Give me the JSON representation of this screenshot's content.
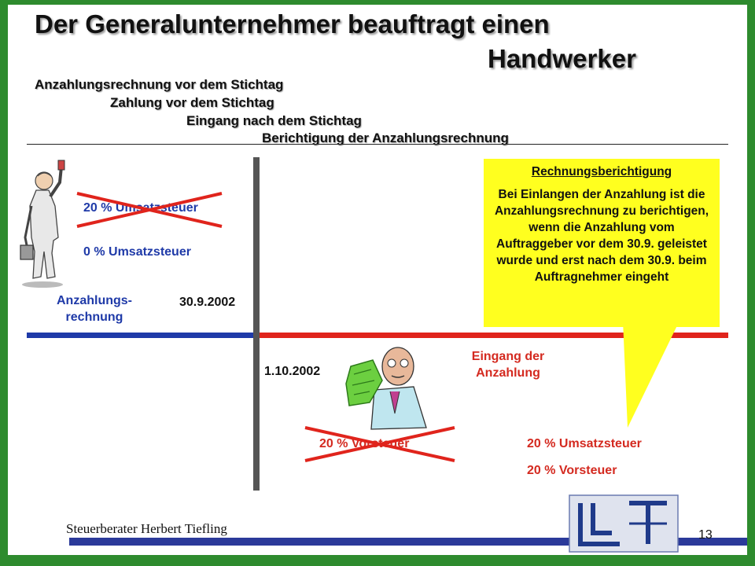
{
  "title": {
    "line1": "Der Generalunternehmer beauftragt einen",
    "line2": "Handwerker"
  },
  "subtitles": [
    "Anzahlungsrechnung vor dem Stichtag",
    "Zahlung vor dem Stichtag",
    "Eingang nach dem Stichtag",
    "Berichtigung der Anzahlungsrechnung"
  ],
  "left": {
    "tax_crossed": "20 % Umsatzsteuer",
    "tax_zero": "0 % Umsatzsteuer",
    "invoice_label": "Anzahlungs-\nrechnung",
    "date_before": "30.9.2002"
  },
  "timeline": {
    "date_after": "1.10.2002",
    "receipt_label": "Eingang der\nAnzahlung",
    "colors": {
      "before": "#1f3aa8",
      "after": "#e0241c",
      "divider": "#555555"
    }
  },
  "bottom": {
    "vat_crossed": "20 % Vorsteuer",
    "vat_sales": "20 % Umsatzsteuer",
    "vat_input": "20 % Vorsteuer"
  },
  "callout": {
    "title": "Rechnungsberichtigung",
    "body": "Bei Einlangen der Anzahlung ist die Anzahlungsrechnung zu berichtigen, wenn die Anzahlung vom Auftraggeber vor dem 30.9. geleistet wurde und erst nach dem 30.9. beim Auftragnehmer eingeht"
  },
  "footer": {
    "author": "Steuerberater Herbert Tiefling",
    "page_number": "13",
    "logo_icon": "union-hand-treu-logo-icon"
  },
  "icons": {
    "painter": "painter-figure-icon",
    "money_man": "man-with-money-icon"
  }
}
